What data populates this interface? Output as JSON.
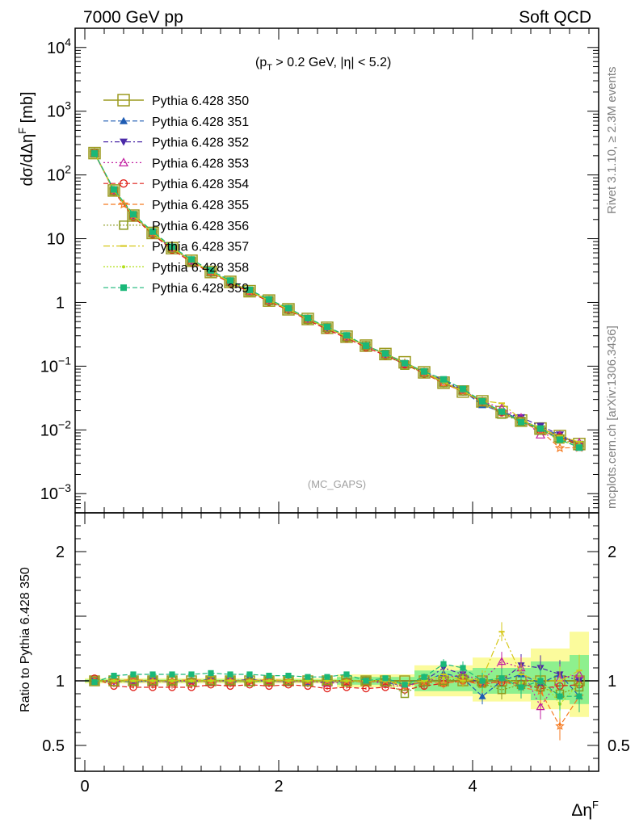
{
  "header": {
    "left_title": "7000 GeV pp",
    "right_title": "Soft QCD"
  },
  "side_labels": {
    "rivet": "Rivet 3.1.10, ≥ 2.3M events",
    "mcplots": "mcplots.cern.ch [arXiv:1306.3436]"
  },
  "chart_data": {
    "type": "line",
    "cut_label": "(pT > 0.2 GeV, |η| < 5.2)",
    "cut_parts": {
      "open": "(p",
      "sub": "T",
      "mid": " > 0.2 GeV, |",
      "eta": "η",
      "close": "| < 5.2)"
    },
    "analysis_label": "(MC_GAPS)",
    "xlabel": "ΔηF",
    "xlabel_parts": {
      "base": "Δη",
      "sup": "F"
    },
    "ylabel_main": "dσ/dΔηF [mb]",
    "ylabel_main_parts": {
      "base": "dσ/dΔη",
      "sup": "F",
      "unit": " [mb]"
    },
    "ylabel_ratio": "Ratio to Pythia 6.428 350",
    "xlim": [
      -0.1,
      5.3
    ],
    "ylim_main": [
      0.0005,
      20000
    ],
    "ylog": true,
    "ylim_ratio": [
      0.3,
      2.3
    ],
    "x_ticks": [
      {
        "value": 0,
        "label": "0"
      },
      {
        "value": 2,
        "label": "2"
      },
      {
        "value": 4,
        "label": "4"
      }
    ],
    "y_ticks_main": [
      {
        "value": 0.001,
        "base": "10",
        "exp": "−3"
      },
      {
        "value": 0.01,
        "base": "10",
        "exp": "−2"
      },
      {
        "value": 0.1,
        "base": "10",
        "exp": "−1"
      },
      {
        "value": 1,
        "base": "1",
        "exp": ""
      },
      {
        "value": 10,
        "base": "10",
        "exp": ""
      },
      {
        "value": 100,
        "base": "10",
        "exp": "2"
      },
      {
        "value": 1000,
        "base": "10",
        "exp": "3"
      },
      {
        "value": 10000,
        "base": "10",
        "exp": "4"
      }
    ],
    "y_ticks_ratio": [
      {
        "value": 0.5,
        "label": "0.5"
      },
      {
        "value": 1,
        "label": "1"
      },
      {
        "value": 2,
        "label": "2"
      }
    ],
    "x": [
      0.1,
      0.3,
      0.5,
      0.7,
      0.9,
      1.1,
      1.3,
      1.5,
      1.7,
      1.9,
      2.1,
      2.3,
      2.5,
      2.7,
      2.9,
      3.1,
      3.3,
      3.5,
      3.7,
      3.9,
      4.1,
      4.3,
      4.5,
      4.7,
      4.9,
      5.1
    ],
    "reference_values": [
      220,
      57,
      23,
      12.3,
      7.1,
      4.5,
      3.0,
      2.1,
      1.5,
      1.07,
      0.78,
      0.55,
      0.4,
      0.29,
      0.21,
      0.155,
      0.115,
      0.08,
      0.055,
      0.04,
      0.028,
      0.019,
      0.014,
      0.0105,
      0.008,
      0.006
    ],
    "band_ratio": [
      {
        "x": [
          0.0,
          2.6
        ],
        "lo": 0.99,
        "hi": 1.01,
        "lo2": 0.98,
        "hi2": 1.02
      },
      {
        "x": [
          2.6,
          3.4
        ],
        "lo": 0.97,
        "hi": 1.03,
        "lo2": 0.95,
        "hi2": 1.05
      },
      {
        "x": [
          3.4,
          4.0
        ],
        "lo": 0.92,
        "hi": 1.08,
        "lo2": 0.88,
        "hi2": 1.12
      },
      {
        "x": [
          4.0,
          4.6
        ],
        "lo": 0.9,
        "hi": 1.1,
        "lo2": 0.84,
        "hi2": 1.18
      },
      {
        "x": [
          4.6,
          5.0
        ],
        "lo": 0.85,
        "hi": 1.15,
        "lo2": 0.78,
        "hi2": 1.25
      },
      {
        "x": [
          5.0,
          5.2
        ],
        "lo": 0.82,
        "hi": 1.2,
        "lo2": 0.72,
        "hi2": 1.38
      }
    ],
    "series": [
      {
        "name": "Pythia 6.428 350",
        "color": "#9c9a1e",
        "marker": "square-open",
        "dash": "",
        "width": 1.6,
        "ratio": [
          1.0,
          1.0,
          1.0,
          1.0,
          1.0,
          1.0,
          1.0,
          1.0,
          1.0,
          1.0,
          1.0,
          1.0,
          1.0,
          1.0,
          1.0,
          1.0,
          1.0,
          1.0,
          1.0,
          1.0,
          1.0,
          1.0,
          1.0,
          1.0,
          1.0,
          1.0
        ]
      },
      {
        "name": "Pythia 6.428 351",
        "color": "#1e5cb3",
        "marker": "triangle-up",
        "dash": "6,3",
        "width": 1.2,
        "ratio": [
          1.0,
          1.0,
          0.99,
          1.0,
          1.0,
          1.0,
          1.01,
          0.99,
          1.0,
          1.0,
          1.0,
          0.99,
          1.0,
          1.0,
          0.99,
          1.0,
          0.97,
          0.99,
          1.06,
          1.02,
          0.88,
          1.0,
          1.05,
          0.98,
          1.05,
          0.88
        ]
      },
      {
        "name": "Pythia 6.428 352",
        "color": "#4b2aa8",
        "marker": "triangle-down",
        "dash": "6,3,2,3",
        "width": 1.2,
        "ratio": [
          1.0,
          0.99,
          1.0,
          1.0,
          0.99,
          1.0,
          1.0,
          1.0,
          1.01,
          1.0,
          0.99,
          1.0,
          0.99,
          1.0,
          1.0,
          0.99,
          0.96,
          1.0,
          1.1,
          1.05,
          0.97,
          1.0,
          1.12,
          1.1,
          1.05,
          1.0
        ]
      },
      {
        "name": "Pythia 6.428 353",
        "color": "#c21ea0",
        "marker": "triangle-open",
        "dash": "2,3",
        "width": 1.2,
        "ratio": [
          1.0,
          1.0,
          1.0,
          0.99,
          1.0,
          1.0,
          0.99,
          1.0,
          1.0,
          1.0,
          0.99,
          1.0,
          0.98,
          0.99,
          1.0,
          0.98,
          0.95,
          1.0,
          1.02,
          1.05,
          1.0,
          1.15,
          1.1,
          0.8,
          1.02,
          1.05
        ]
      },
      {
        "name": "Pythia 6.428 354",
        "color": "#e0201a",
        "marker": "circle-open",
        "dash": "6,3",
        "width": 1.2,
        "ratio": [
          1.02,
          0.96,
          0.95,
          0.95,
          0.95,
          0.95,
          0.97,
          0.96,
          0.97,
          0.96,
          0.97,
          0.96,
          0.94,
          0.95,
          0.94,
          0.95,
          0.93,
          0.96,
          0.98,
          1.0,
          0.98,
          0.99,
          0.98,
          0.94,
          0.96,
          0.97
        ]
      },
      {
        "name": "Pythia 6.428 355",
        "color": "#f57a20",
        "marker": "star-open",
        "dash": "6,3",
        "width": 1.2,
        "ratio": [
          1.0,
          1.0,
          1.01,
          1.0,
          1.0,
          1.01,
          1.0,
          1.0,
          1.0,
          1.01,
          1.0,
          1.0,
          1.0,
          1.0,
          0.99,
          1.0,
          0.96,
          0.99,
          0.98,
          1.0,
          0.97,
          1.0,
          0.95,
          0.92,
          0.65,
          0.88
        ]
      },
      {
        "name": "Pythia 6.428 356",
        "color": "#8a9a1e",
        "marker": "square-open",
        "dash": "2,2",
        "width": 1.2,
        "ratio": [
          1.0,
          0.99,
          1.0,
          1.0,
          1.0,
          0.99,
          1.0,
          1.0,
          0.99,
          1.0,
          1.0,
          0.99,
          1.0,
          0.99,
          1.0,
          0.99,
          0.9,
          0.99,
          1.0,
          1.02,
          0.98,
          0.93,
          0.97,
          0.95,
          0.9,
          0.95
        ]
      },
      {
        "name": "Pythia 6.428 357",
        "color": "#d6c81a",
        "marker": "dash-tick",
        "dash": "8,3,2,3",
        "width": 1.2,
        "ratio": [
          1.0,
          1.0,
          1.0,
          1.0,
          1.0,
          1.0,
          1.0,
          1.0,
          1.0,
          1.0,
          1.0,
          1.0,
          1.0,
          1.0,
          1.0,
          1.0,
          0.98,
          1.0,
          1.05,
          1.0,
          1.02,
          1.38,
          1.05,
          1.0,
          1.0,
          1.08
        ]
      },
      {
        "name": "Pythia 6.428 358",
        "color": "#b2e01a",
        "marker": "dot",
        "dash": "2,2",
        "width": 1.2,
        "ratio": [
          1.0,
          1.0,
          1.0,
          1.0,
          1.0,
          1.0,
          1.0,
          1.0,
          1.0,
          1.0,
          1.0,
          1.0,
          1.0,
          1.0,
          1.0,
          1.0,
          0.97,
          1.0,
          1.02,
          1.03,
          1.0,
          1.02,
          0.98,
          1.02,
          0.82,
          0.98
        ]
      },
      {
        "name": "Pythia 6.428 359",
        "color": "#1ab878",
        "marker": "square-filled",
        "dash": "6,3",
        "width": 1.2,
        "ratio": [
          0.99,
          1.04,
          1.05,
          1.05,
          1.05,
          1.05,
          1.06,
          1.05,
          1.05,
          1.04,
          1.04,
          1.03,
          1.03,
          1.05,
          1.0,
          1.02,
          0.97,
          1.03,
          1.13,
          1.1,
          1.0,
          1.02,
          0.95,
          1.0,
          0.88,
          0.88
        ]
      }
    ]
  }
}
